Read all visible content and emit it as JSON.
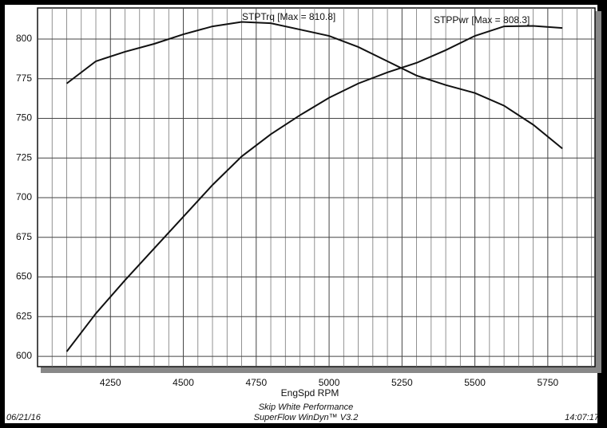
{
  "chart_data": {
    "type": "line",
    "x_label": "EngSpd RPM",
    "x": [
      4100,
      4200,
      4300,
      4400,
      4500,
      4600,
      4700,
      4800,
      4900,
      5000,
      5100,
      5200,
      5300,
      5400,
      5500,
      5600,
      5700,
      5800
    ],
    "series": [
      {
        "name": "STPTrq",
        "color": "#111111",
        "values": [
          772,
          786,
          792,
          797,
          803,
          808,
          810.8,
          810,
          806,
          802,
          795,
          786,
          777,
          771,
          766,
          758,
          746,
          731
        ]
      },
      {
        "name": "STPPwr",
        "color": "#111111",
        "values": [
          603,
          627,
          648,
          668,
          688,
          708,
          726,
          740,
          752,
          763,
          772,
          779,
          785,
          793,
          802,
          808,
          808.3,
          807
        ]
      }
    ],
    "annotations": [
      "STPTrq [Max = 810.8]",
      "STPPwr [Max = 808.3]"
    ],
    "xlim": [
      4000,
      5912
    ],
    "ylim": [
      593.5,
      819.6
    ],
    "xticks": [
      4250,
      4500,
      4750,
      5000,
      5250,
      5500,
      5750
    ],
    "x_minor_ticks": [
      4050,
      4100,
      4150,
      4200,
      4300,
      4350,
      4400,
      4450,
      4550,
      4600,
      4650,
      4700,
      4800,
      4850,
      4900,
      4950,
      5050,
      5100,
      5150,
      5200,
      5300,
      5350,
      5400,
      5450,
      5550,
      5600,
      5650,
      5700,
      5800,
      5850,
      5900
    ],
    "yticks": [
      600,
      625,
      650,
      675,
      700,
      725,
      750,
      775,
      800
    ],
    "grid": true,
    "footer": {
      "company": "Skip White Performance",
      "software": "SuperFlow WinDyn™ V3.2",
      "date": "06/21/16",
      "time": "14:07:17"
    }
  }
}
